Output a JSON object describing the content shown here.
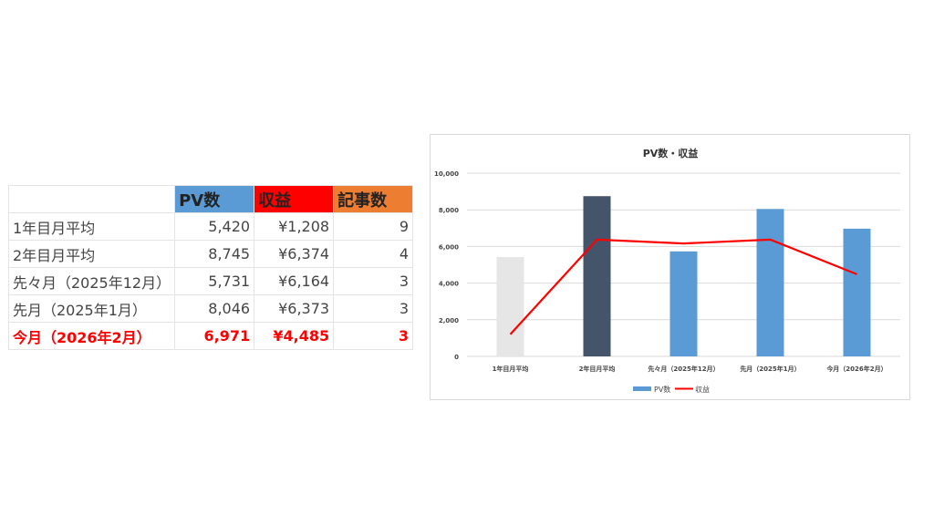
{
  "table": {
    "headers": [
      "",
      "PV数",
      "収益",
      "記事数"
    ],
    "header_colors": [
      "#ffffff",
      "#5b9bd5",
      "#ff0000",
      "#ed7d31"
    ],
    "rows": [
      [
        "1年目月平均",
        "5,420",
        "¥1,208",
        "9"
      ],
      [
        "2年目月平均",
        "8,745",
        "¥6,374",
        "4"
      ],
      [
        "先々月（2025年12月）",
        "5,731",
        "¥6,164",
        "3"
      ],
      [
        "先月（2025年1月）",
        "8,046",
        "¥6,373",
        "3"
      ],
      [
        "今月（2026年2月）",
        "6,971",
        "¥4,485",
        "3"
      ]
    ]
  },
  "chart_data": {
    "type": "bar",
    "title": "PV数・収益",
    "categories": [
      "1年目月平均",
      "2年目月平均",
      "先々月（2025年12月）",
      "先月（2025年1月）",
      "今月（2026年2月）"
    ],
    "series": [
      {
        "name": "PV数",
        "type": "bar",
        "values": [
          5420,
          8745,
          5731,
          8046,
          6971
        ],
        "colors": [
          "#e7e6e6",
          "#44546a",
          "#5b9bd5",
          "#5b9bd5",
          "#5b9bd5"
        ],
        "legend_color": "#5b9bd5"
      },
      {
        "name": "収益",
        "type": "line",
        "values": [
          1208,
          6374,
          6164,
          6373,
          4485
        ],
        "color": "#ff0000"
      }
    ],
    "ylim": [
      0,
      10000
    ],
    "yticks": [
      0,
      2000,
      4000,
      6000,
      8000,
      10000
    ],
    "ytick_labels": [
      "0",
      "2,000",
      "4,000",
      "6,000",
      "8,000",
      "10,000"
    ],
    "grid": true,
    "legend": "bottom"
  }
}
